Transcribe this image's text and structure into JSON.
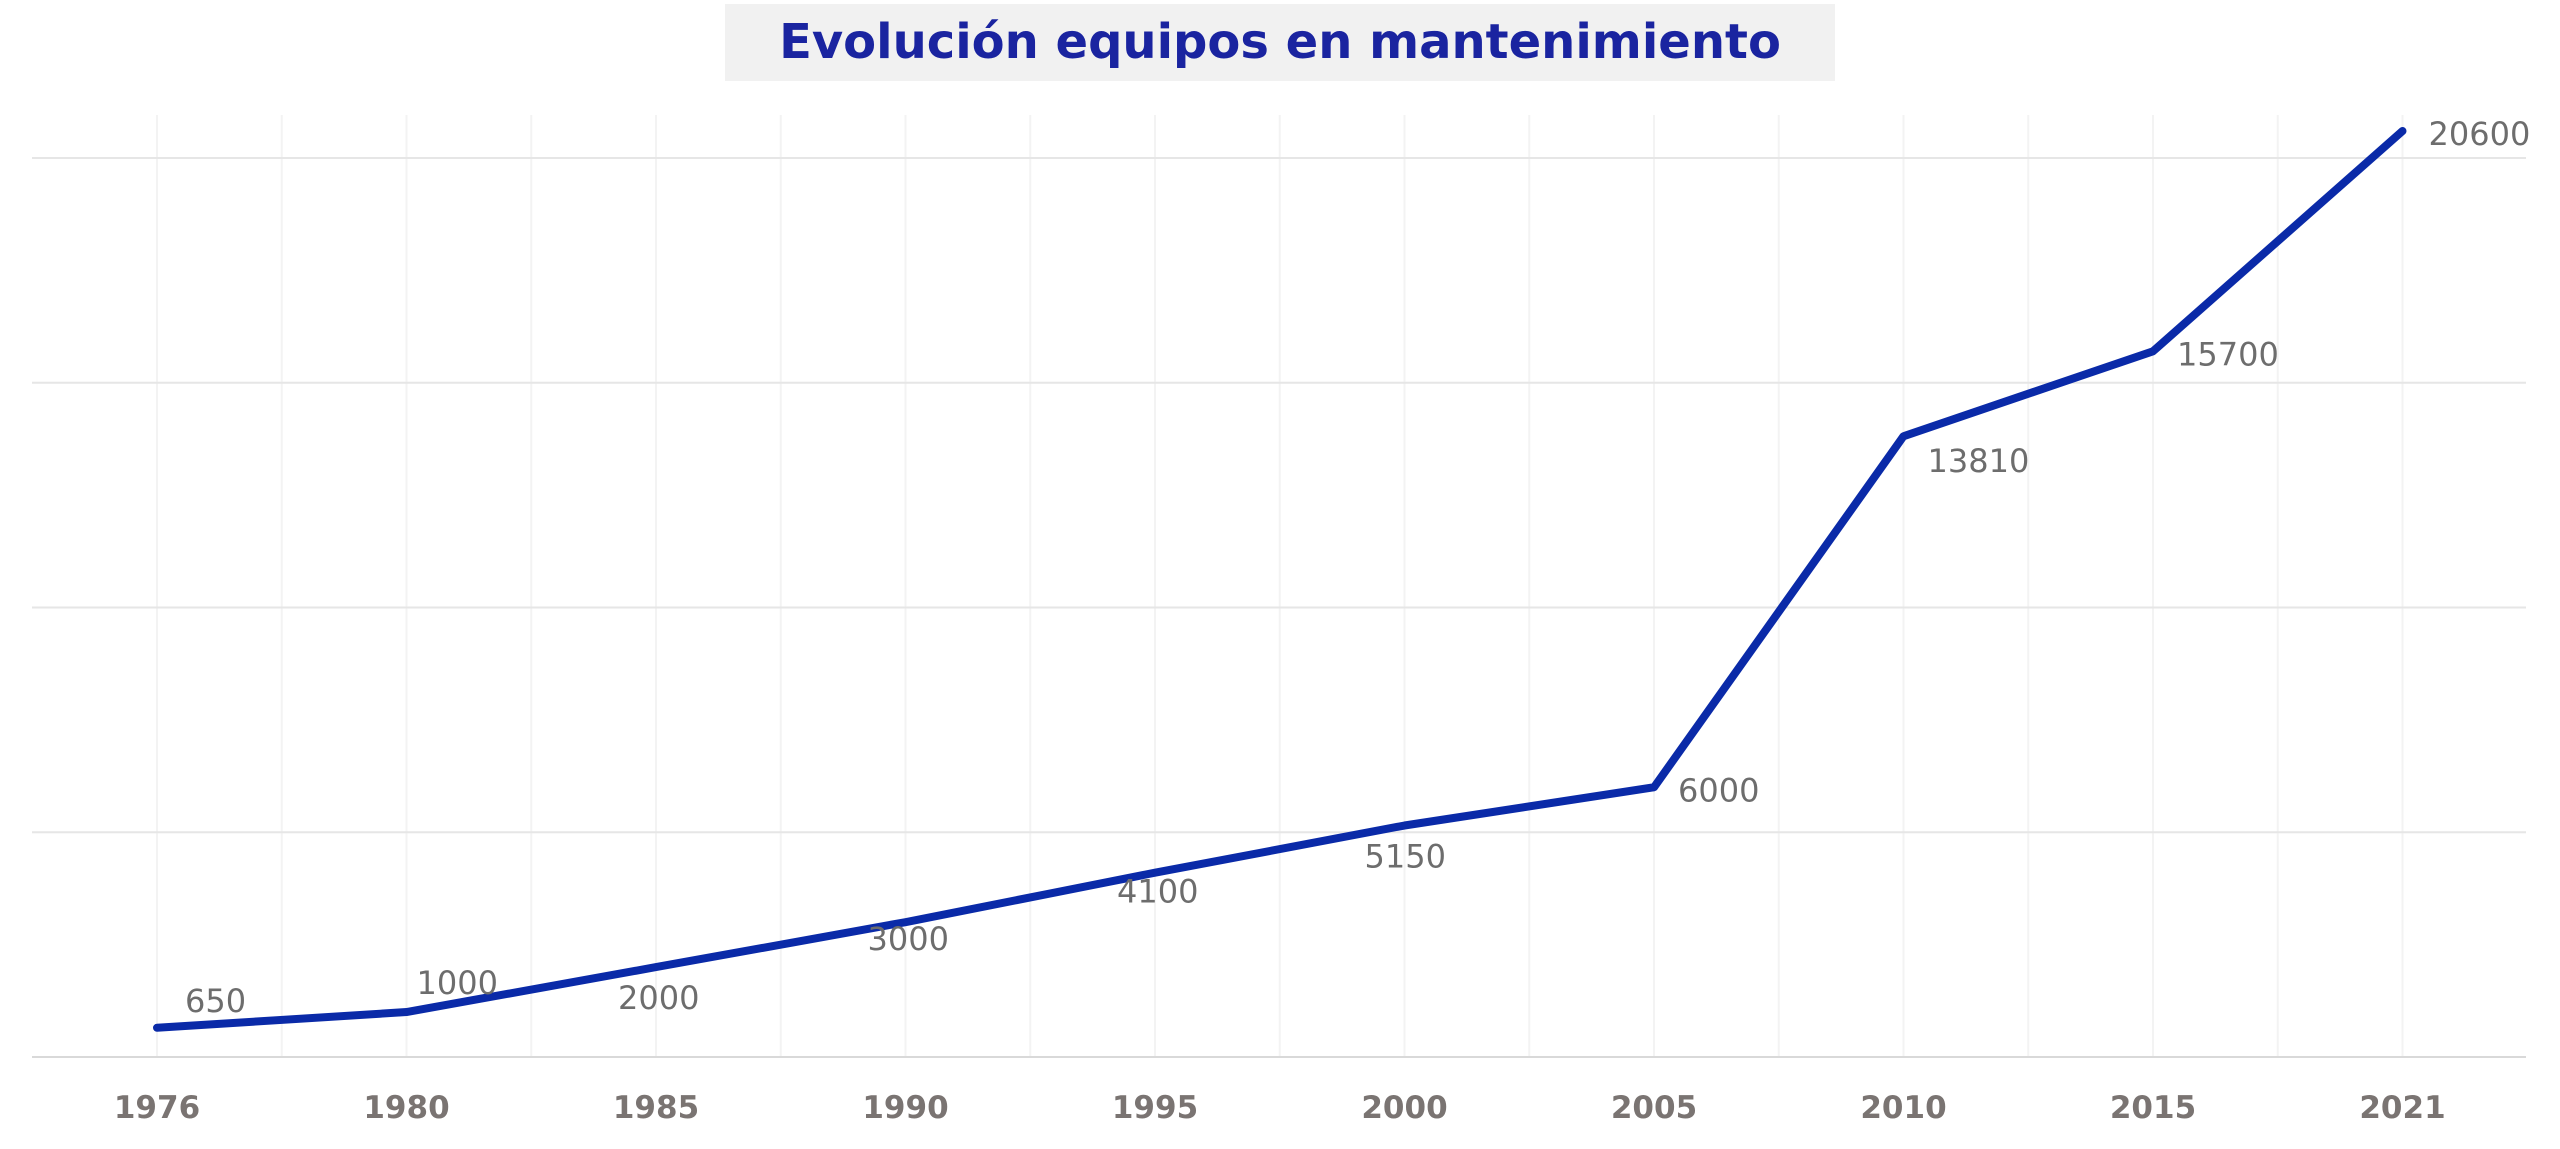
{
  "chart_data": {
    "type": "line",
    "title": "Evolución equipos en mantenimiento",
    "xlabel": "",
    "ylabel": "",
    "categories": [
      "1976",
      "1980",
      "1985",
      "1990",
      "1995",
      "2000",
      "2005",
      "2010",
      "2015",
      "2021"
    ],
    "series": [
      {
        "values": [
          650,
          1000,
          2000,
          3000,
          4100,
          5150,
          6000,
          13810,
          15700,
          20600
        ]
      }
    ],
    "ylim": [
      0,
      20000
    ],
    "y_gridlines": [
      0,
      5000,
      10000,
      15000,
      20000
    ],
    "y_tick_labels_shown": false,
    "grid": true,
    "legend": "none",
    "colors": {
      "line": "#0a2aa8",
      "title_text": "#1a24a0",
      "title_box": "#f1f1f1",
      "data_label": "#6d6d6d",
      "tick_label": "#7a7472",
      "grid_major": "#e6e6e6",
      "grid_minor": "#f3f3f3",
      "axis": "#d9d9d9"
    }
  }
}
